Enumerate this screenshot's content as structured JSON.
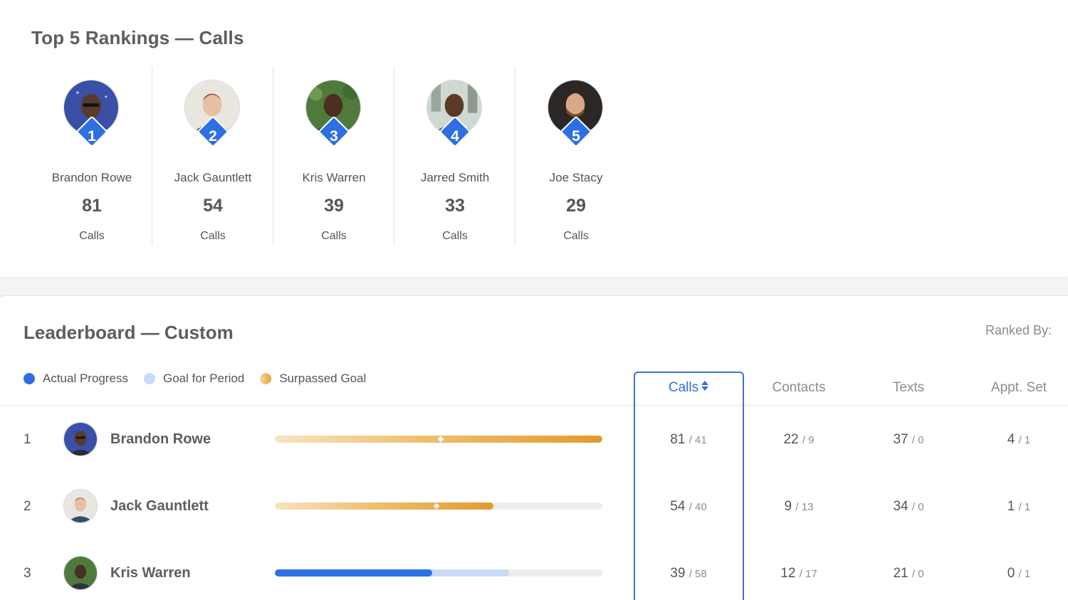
{
  "top_rankings": {
    "title": "Top 5 Rankings — Calls",
    "people": [
      {
        "rank": "1",
        "name": "Brandon Rowe",
        "value": "81",
        "metric": "Calls",
        "avatar": "avatar-brandon"
      },
      {
        "rank": "2",
        "name": "Jack Gauntlett",
        "value": "54",
        "metric": "Calls",
        "avatar": "avatar-jack"
      },
      {
        "rank": "3",
        "name": "Kris Warren",
        "value": "39",
        "metric": "Calls",
        "avatar": "avatar-kris"
      },
      {
        "rank": "4",
        "name": "Jarred Smith",
        "value": "33",
        "metric": "Calls",
        "avatar": "avatar-jarred"
      },
      {
        "rank": "5",
        "name": "Joe Stacy",
        "value": "29",
        "metric": "Calls",
        "avatar": "avatar-joe"
      }
    ]
  },
  "leaderboard": {
    "title": "Leaderboard — Custom",
    "ranked_by_label": "Ranked By:",
    "legend": {
      "actual": "Actual Progress",
      "goal": "Goal for Period",
      "surpassed": "Surpassed Goal"
    },
    "columns": {
      "calls": "Calls",
      "contacts": "Contacts",
      "texts": "Texts",
      "appt_set": "Appt. Set"
    },
    "colors": {
      "accent": "#2f6fe4",
      "goal": "#c8dbf7",
      "surpassed": "#e39a2e"
    },
    "rows": [
      {
        "rank": "1",
        "name": "Brandon Rowe",
        "progress": {
          "state": "surpassed",
          "actual_fraction": 1.0,
          "goal_fraction": 0.506
        },
        "calls": {
          "actual": "81",
          "goal": "/ 41"
        },
        "contacts": {
          "actual": "22",
          "goal": "/ 9"
        },
        "texts": {
          "actual": "37",
          "goal": "/ 0"
        },
        "appt_set": {
          "actual": "4",
          "goal": "/ 1"
        }
      },
      {
        "rank": "2",
        "name": "Jack Gauntlett",
        "progress": {
          "state": "surpassed",
          "actual_fraction": 0.667,
          "goal_fraction": 0.494
        },
        "calls": {
          "actual": "54",
          "goal": "/ 40"
        },
        "contacts": {
          "actual": "9",
          "goal": "/ 13"
        },
        "texts": {
          "actual": "34",
          "goal": "/ 0"
        },
        "appt_set": {
          "actual": "1",
          "goal": "/ 1"
        }
      },
      {
        "rank": "3",
        "name": "Kris Warren",
        "progress": {
          "state": "actual",
          "actual_fraction": 0.481,
          "goal_fraction": 0.716
        },
        "calls": {
          "actual": "39",
          "goal": "/ 58"
        },
        "contacts": {
          "actual": "12",
          "goal": "/ 17"
        },
        "texts": {
          "actual": "21",
          "goal": "/ 0"
        },
        "appt_set": {
          "actual": "0",
          "goal": "/ 1"
        }
      }
    ]
  }
}
